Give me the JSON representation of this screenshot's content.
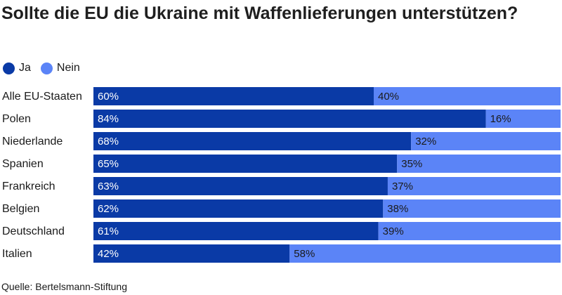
{
  "chart_data": {
    "type": "bar",
    "orientation": "horizontal",
    "stacked": true,
    "title": "Sollte die EU die Ukraine mit Waffenlieferungen unterstützen?",
    "categories": [
      "Alle EU-Staaten",
      "Polen",
      "Niederlande",
      "Spanien",
      "Frankreich",
      "Belgien",
      "Deutschland",
      "Italien"
    ],
    "series": [
      {
        "name": "Ja",
        "color": "#0a3aa6",
        "values": [
          60,
          84,
          68,
          65,
          63,
          62,
          61,
          42
        ]
      },
      {
        "name": "Nein",
        "color": "#5b84f7",
        "values": [
          40,
          16,
          32,
          35,
          37,
          38,
          39,
          58
        ]
      }
    ],
    "value_suffix": "%",
    "xlim": [
      0,
      100
    ],
    "legend_position": "top-left",
    "grid": false,
    "source": "Quelle: Bertelsmann-Stiftung"
  }
}
